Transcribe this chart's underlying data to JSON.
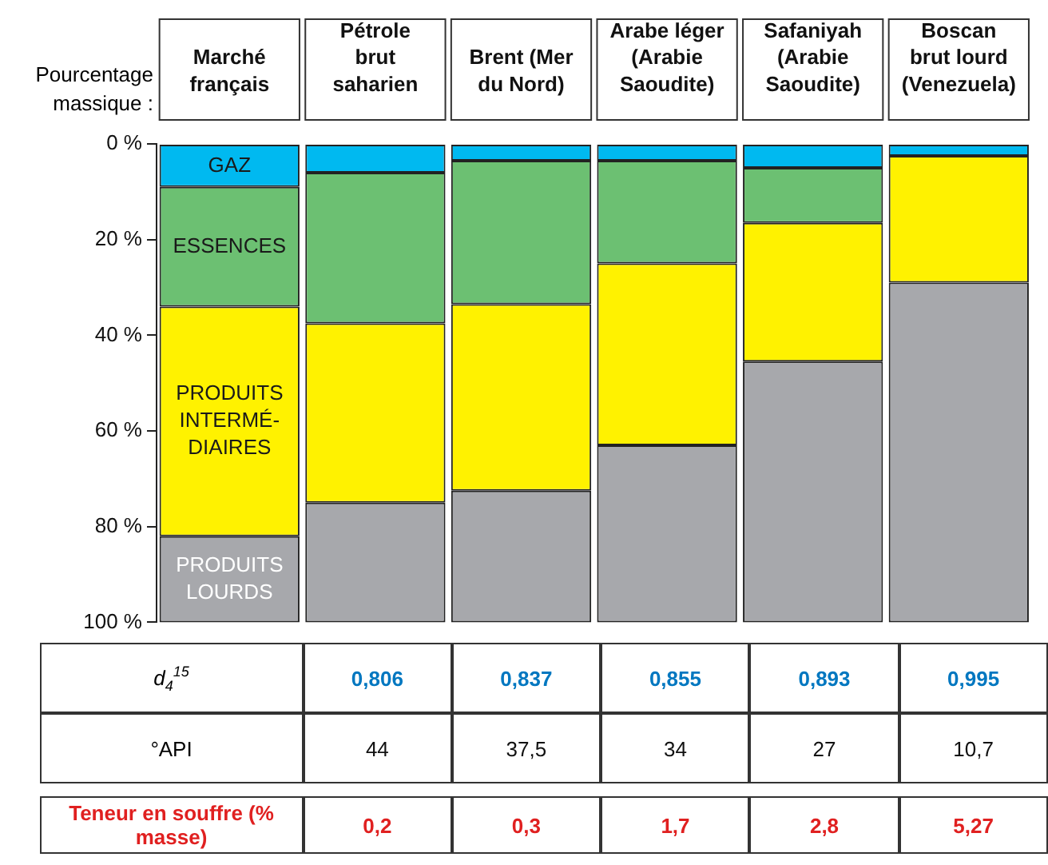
{
  "chart_data": {
    "type": "bar",
    "stacked": true,
    "ylabel": "Pourcentage massique :",
    "categories": [
      "Marché français",
      "Pétrole brut saharien",
      "Brent (Mer du Nord)",
      "Arabe léger (Arabie Saoudite)",
      "Safaniyah (Arabie Saoudite)",
      "Boscan brut lourd (Venezuela)"
    ],
    "series": [
      {
        "name": "GAZ",
        "color": "#00b9f0",
        "values": [
          9,
          6,
          3.5,
          3.5,
          5,
          2.5
        ]
      },
      {
        "name": "ESSENCES",
        "color": "#6cc072",
        "values": [
          25,
          31.5,
          30,
          21.5,
          11.5,
          0
        ]
      },
      {
        "name": "PRODUITS INTERMÉ-DIAIRES",
        "color": "#fff200",
        "values": [
          48,
          37.5,
          39,
          38,
          29,
          26.5
        ]
      },
      {
        "name": "PRODUITS LOURDS",
        "color": "#a7a8ac",
        "values": [
          18,
          25,
          27.5,
          37,
          54.5,
          71
        ]
      }
    ],
    "ylim": [
      100,
      0
    ],
    "yticks": [
      {
        "value": 0,
        "label": "0 %"
      },
      {
        "value": 20,
        "label": "20 %"
      },
      {
        "value": 40,
        "label": "40 %"
      },
      {
        "value": 60,
        "label": "60 %"
      },
      {
        "value": 80,
        "label": "80 %"
      },
      {
        "value": 100,
        "label": "100 %"
      }
    ],
    "grid": false,
    "legend": false,
    "annotations": [
      "d$_{4}$$^{15}$",
      "0,806",
      "0,837",
      "0,855",
      "0,893",
      "0,995",
      "°API",
      "44",
      "37,5",
      "34",
      "27",
      "10,7",
      "Teneur en souffre (% masse)",
      "0,2",
      "0,3",
      "1,7",
      "2,8",
      "5,27"
    ]
  }
}
